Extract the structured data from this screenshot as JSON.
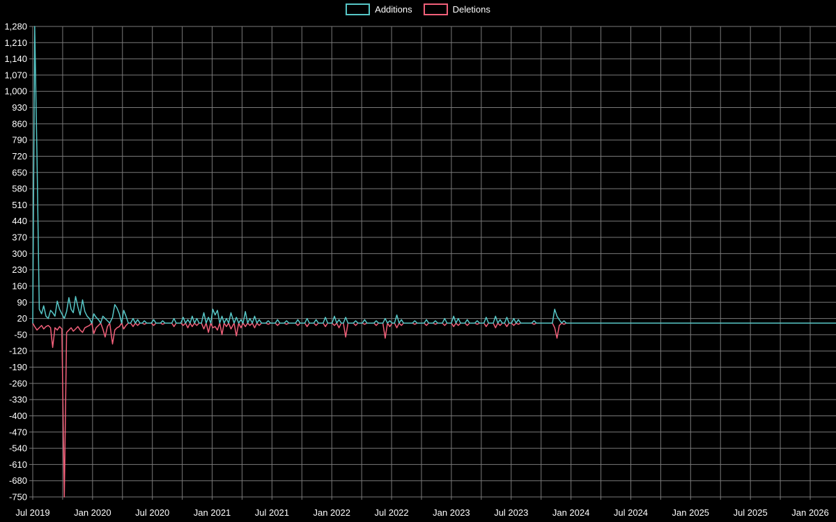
{
  "page": {
    "background": "#000000",
    "text_color": "#ffffff"
  },
  "legend": {
    "position": "top-center",
    "items": [
      {
        "label": "Additions"
      },
      {
        "label": "Deletions"
      }
    ]
  },
  "chart_data": {
    "type": "line",
    "title": "",
    "xlabel": "",
    "ylabel": "",
    "grid": {
      "shown": true,
      "color": "#7a7a7a"
    },
    "x_axis": {
      "start_month": "2019-07",
      "end_month": "2026-01",
      "grid_every_months": 3,
      "label_every_months": 6,
      "tick_labels": [
        "Jul 2019",
        "Jan 2020",
        "Jul 2020",
        "Jan 2021",
        "Jul 2021",
        "Jan 2022",
        "Jul 2022",
        "Jan 2023",
        "Jul 2023",
        "Jan 2024",
        "Jul 2024",
        "Jan 2025",
        "Jul 2025",
        "Jan 2026"
      ]
    },
    "y_axis": {
      "min": -750,
      "max": 1280,
      "step": 70,
      "tick_labels": [
        "1,280",
        "1,210",
        "1,140",
        "1,070",
        "1,000",
        "930",
        "860",
        "790",
        "720",
        "650",
        "580",
        "510",
        "440",
        "370",
        "300",
        "230",
        "160",
        "90",
        "20",
        "-50",
        "-120",
        "-190",
        "-260",
        "-330",
        "-400",
        "-470",
        "-540",
        "-610",
        "-680",
        "-750"
      ]
    },
    "sampling": "weekly",
    "baseline": 0,
    "range": {
      "first_week": "2019-06-30",
      "last_week": "2026-03-08"
    },
    "series": [
      {
        "name": "Additions",
        "color": "#57c7c7",
        "points": {
          "2019-07-07": 1280,
          "2019-07-14": 720,
          "2019-07-21": 60,
          "2019-07-28": 40,
          "2019-08-04": 75,
          "2019-08-11": 30,
          "2019-08-18": 20,
          "2019-08-25": 55,
          "2019-09-01": 45,
          "2019-09-08": 30,
          "2019-09-15": 95,
          "2019-09-22": 60,
          "2019-09-29": 40,
          "2019-10-06": 20,
          "2019-10-13": 50,
          "2019-10-20": 110,
          "2019-10-27": 60,
          "2019-11-03": 45,
          "2019-11-10": 115,
          "2019-11-17": 70,
          "2019-11-24": 35,
          "2019-12-01": 100,
          "2019-12-08": 50,
          "2019-12-15": 30,
          "2019-12-22": 20,
          "2020-01-05": 40,
          "2020-01-12": 25,
          "2020-01-19": 15,
          "2020-02-02": 30,
          "2020-02-09": 20,
          "2020-02-16": 10,
          "2020-03-01": 25,
          "2020-03-08": 80,
          "2020-03-15": 65,
          "2020-03-22": 40,
          "2020-04-05": 55,
          "2020-04-12": 30,
          "2020-05-03": 20,
          "2020-05-17": 15,
          "2020-06-07": 10,
          "2020-07-05": 15,
          "2020-08-02": 10,
          "2020-09-06": 20,
          "2020-10-04": 25,
          "2020-10-18": 15,
          "2020-11-01": 30,
          "2020-11-15": 20,
          "2020-12-06": 45,
          "2020-12-20": 25,
          "2021-01-03": 60,
          "2021-01-10": 35,
          "2021-01-17": 55,
          "2021-01-31": 30,
          "2021-02-14": 20,
          "2021-02-28": 45,
          "2021-03-14": 25,
          "2021-03-28": 15,
          "2021-04-11": 50,
          "2021-04-25": 20,
          "2021-05-09": 30,
          "2021-05-23": 15,
          "2021-06-20": 10,
          "2021-07-18": 15,
          "2021-08-15": 10,
          "2021-09-19": 15,
          "2021-10-17": 20,
          "2021-11-14": 15,
          "2021-12-12": 25,
          "2022-01-09": 30,
          "2022-01-23": 15,
          "2022-02-13": 25,
          "2022-03-13": 10,
          "2022-04-10": 15,
          "2022-05-15": 10,
          "2022-06-12": 20,
          "2022-06-26": 10,
          "2022-07-17": 35,
          "2022-07-31": 15,
          "2022-09-11": 10,
          "2022-10-16": 15,
          "2022-11-13": 10,
          "2022-12-11": 20,
          "2023-01-08": 30,
          "2023-01-22": 20,
          "2023-02-19": 15,
          "2023-03-19": 10,
          "2023-04-16": 25,
          "2023-05-14": 30,
          "2023-05-28": 15,
          "2023-06-18": 25,
          "2023-07-09": 20,
          "2023-07-23": 15,
          "2023-09-10": 10,
          "2023-11-12": 60,
          "2023-11-19": 30,
          "2023-11-26": 15,
          "2023-12-10": 10
        }
      },
      {
        "name": "Deletions",
        "color": "#f2607a",
        "points": {
          "2019-07-07": -15,
          "2019-07-14": -30,
          "2019-07-21": -20,
          "2019-07-28": -10,
          "2019-08-04": -25,
          "2019-08-11": -15,
          "2019-08-18": -10,
          "2019-08-25": -20,
          "2019-09-01": -105,
          "2019-09-08": -20,
          "2019-09-15": -30,
          "2019-09-22": -15,
          "2019-09-29": -25,
          "2019-10-06": -750,
          "2019-10-13": -40,
          "2019-10-20": -30,
          "2019-10-27": -20,
          "2019-11-03": -35,
          "2019-11-10": -25,
          "2019-11-17": -15,
          "2019-11-24": -30,
          "2019-12-01": -40,
          "2019-12-08": -20,
          "2019-12-15": -15,
          "2019-12-22": -10,
          "2020-01-05": -45,
          "2020-01-12": -20,
          "2020-01-19": -10,
          "2020-02-02": -25,
          "2020-02-09": -60,
          "2020-02-16": -15,
          "2020-03-01": -90,
          "2020-03-08": -30,
          "2020-03-15": -20,
          "2020-03-22": -15,
          "2020-04-05": -25,
          "2020-04-12": -10,
          "2020-05-03": -15,
          "2020-05-17": -10,
          "2020-06-07": -5,
          "2020-07-05": -10,
          "2020-08-02": -5,
          "2020-09-06": -15,
          "2020-10-04": -10,
          "2020-10-18": -20,
          "2020-11-01": -15,
          "2020-11-15": -10,
          "2020-12-06": -25,
          "2020-12-20": -40,
          "2021-01-03": -20,
          "2021-01-10": -15,
          "2021-01-17": -30,
          "2021-01-31": -50,
          "2021-02-14": -15,
          "2021-02-28": -25,
          "2021-03-14": -55,
          "2021-03-28": -20,
          "2021-04-11": -15,
          "2021-04-25": -10,
          "2021-05-09": -20,
          "2021-05-23": -10,
          "2021-06-20": -5,
          "2021-07-18": -10,
          "2021-08-15": -5,
          "2021-09-19": -10,
          "2021-10-17": -15,
          "2021-11-14": -10,
          "2021-12-12": -15,
          "2022-01-09": -10,
          "2022-01-23": -20,
          "2022-02-13": -60,
          "2022-03-13": -10,
          "2022-04-10": -5,
          "2022-05-15": -10,
          "2022-06-12": -65,
          "2022-06-26": -15,
          "2022-07-17": -20,
          "2022-07-31": -10,
          "2022-09-11": -5,
          "2022-10-16": -10,
          "2022-11-13": -5,
          "2022-12-11": -10,
          "2023-01-08": -15,
          "2023-01-22": -10,
          "2023-02-19": -10,
          "2023-03-19": -5,
          "2023-04-16": -15,
          "2023-05-14": -20,
          "2023-05-28": -10,
          "2023-06-18": -15,
          "2023-07-09": -10,
          "2023-07-23": -5,
          "2023-09-10": -5,
          "2023-11-12": -20,
          "2023-11-19": -65,
          "2023-11-26": -10,
          "2023-12-10": -5
        }
      }
    ]
  }
}
